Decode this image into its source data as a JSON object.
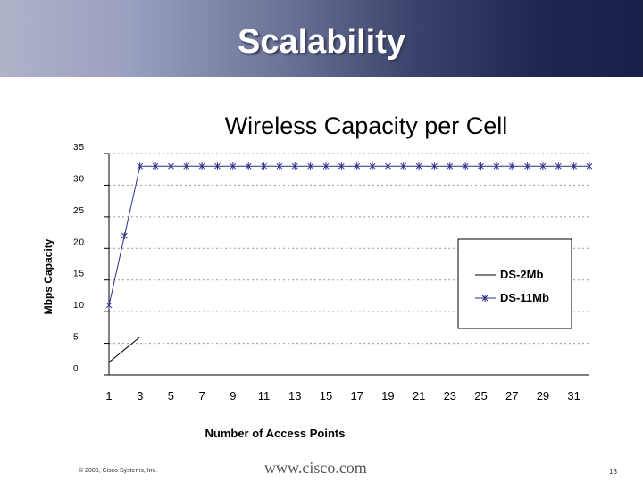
{
  "slide": {
    "title": "Scalability",
    "copyright": "© 2000, Cisco Systems, Inc.",
    "url": "www.cisco.com",
    "page_number": "13"
  },
  "chart_data": {
    "type": "line",
    "title": "Wireless Capacity per Cell",
    "xlabel": "Number of Access Points",
    "ylabel": "Mbps Capacity",
    "xlim": [
      1,
      32
    ],
    "ylim": [
      0,
      35
    ],
    "xticks": [
      "1",
      "3",
      "5",
      "7",
      "9",
      "11",
      "13",
      "15",
      "17",
      "19",
      "21",
      "23",
      "25",
      "27",
      "29",
      "31"
    ],
    "yticks": [
      "35",
      "30",
      "25",
      "20",
      "15",
      "10",
      "5",
      "0"
    ],
    "legend_position": "right",
    "grid": "horizontal dashed",
    "series": [
      {
        "name": "DS-2Mb",
        "color": "#000000",
        "marker": "none",
        "x": [
          1,
          2,
          3,
          4,
          5,
          6,
          7,
          8,
          9,
          10,
          11,
          12,
          13,
          14,
          15,
          16,
          17,
          18,
          19,
          20,
          21,
          22,
          23,
          24,
          25,
          26,
          27,
          28,
          29,
          30,
          31,
          32
        ],
        "values": [
          2,
          4,
          6,
          6,
          6,
          6,
          6,
          6,
          6,
          6,
          6,
          6,
          6,
          6,
          6,
          6,
          6,
          6,
          6,
          6,
          6,
          6,
          6,
          6,
          6,
          6,
          6,
          6,
          6,
          6,
          6,
          6
        ]
      },
      {
        "name": "DS-11Mb",
        "color": "#2b2f8a",
        "marker": "asterisk",
        "x": [
          1,
          2,
          3,
          4,
          5,
          6,
          7,
          8,
          9,
          10,
          11,
          12,
          13,
          14,
          15,
          16,
          17,
          18,
          19,
          20,
          21,
          22,
          23,
          24,
          25,
          26,
          27,
          28,
          29,
          30,
          31,
          32
        ],
        "values": [
          11,
          22,
          33,
          33,
          33,
          33,
          33,
          33,
          33,
          33,
          33,
          33,
          33,
          33,
          33,
          33,
          33,
          33,
          33,
          33,
          33,
          33,
          33,
          33,
          33,
          33,
          33,
          33,
          33,
          33,
          33,
          33
        ]
      }
    ]
  }
}
